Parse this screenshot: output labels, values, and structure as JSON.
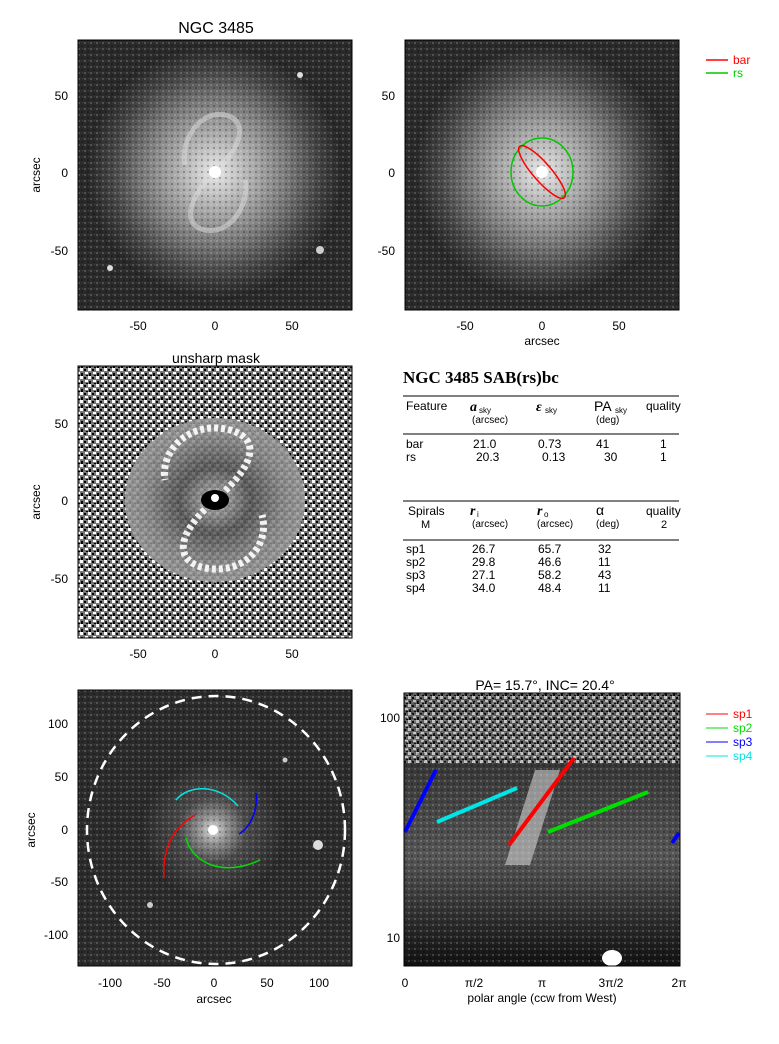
{
  "panel1": {
    "title": "NGC 3485",
    "ylabel": "arcsec",
    "xticks": [
      "-50",
      "0",
      "50"
    ],
    "yticks": [
      "50",
      "0",
      "-50"
    ]
  },
  "panel2": {
    "xlabel": "arcsec",
    "xticks": [
      "-50",
      "0",
      "50"
    ],
    "yticks": [
      "50",
      "0",
      "-50"
    ],
    "legend": [
      {
        "label": "bar",
        "color": "#ff0000"
      },
      {
        "label": "rs",
        "color": "#00c800"
      }
    ]
  },
  "panel3": {
    "title": "unsharp mask",
    "ylabel": "arcsec",
    "xticks": [
      "-50",
      "0",
      "50"
    ],
    "yticks": [
      "50",
      "0",
      "-50"
    ]
  },
  "table": {
    "title": "NGC 3485  SAB(rs)bc",
    "head1": {
      "feature": "Feature",
      "a": "a",
      "a_sub": "sky",
      "a_unit": "(arcsec)",
      "eps": "ε",
      "eps_sub": "sky",
      "pa": "PA",
      "pa_sub": "sky",
      "pa_unit": "(deg)",
      "quality": "quality"
    },
    "rows1": [
      {
        "feature": "bar",
        "a": "21.0",
        "eps": "0.73",
        "pa": "41",
        "quality": "1"
      },
      {
        "feature": "rs",
        "a": "20.3",
        "eps": "0.13",
        "pa": "30",
        "quality": "1"
      }
    ],
    "head2": {
      "spirals": "Spirals",
      "m": "M",
      "ri": "r",
      "ri_sub": "i",
      "ri_unit": "(arcsec)",
      "ro": "r",
      "ro_sub": "o",
      "ro_unit": "(arcsec)",
      "alpha": "α",
      "alpha_unit": "(deg)",
      "quality": "quality",
      "quality_val": "2"
    },
    "rows2": [
      {
        "name": "sp1",
        "ri": "26.7",
        "ro": "65.7",
        "alpha": "32"
      },
      {
        "name": "sp2",
        "ri": "29.8",
        "ro": "46.6",
        "alpha": "11"
      },
      {
        "name": "sp3",
        "ri": "27.1",
        "ro": "58.2",
        "alpha": "43"
      },
      {
        "name": "sp4",
        "ri": "34.0",
        "ro": "48.4",
        "alpha": "11"
      }
    ]
  },
  "panel5": {
    "xlabel": "arcsec",
    "ylabel": "arcsec",
    "xticks": [
      "-100",
      "-50",
      "0",
      "50",
      "100"
    ],
    "yticks": [
      "100",
      "50",
      "0",
      "-50",
      "-100"
    ]
  },
  "panel6": {
    "title": "PA=  15.7°, INC=  20.4°",
    "xlabel": "polar angle (ccw from West)",
    "xticks": [
      "0",
      "π/2",
      "π",
      "3π/2",
      "2π"
    ],
    "yticks": [
      "100",
      "10"
    ],
    "legend": [
      {
        "label": "sp1",
        "color": "#ff0000"
      },
      {
        "label": "sp2",
        "color": "#00dd00"
      },
      {
        "label": "sp3",
        "color": "#0000ff"
      },
      {
        "label": "sp4",
        "color": "#00e5e5"
      }
    ]
  }
}
